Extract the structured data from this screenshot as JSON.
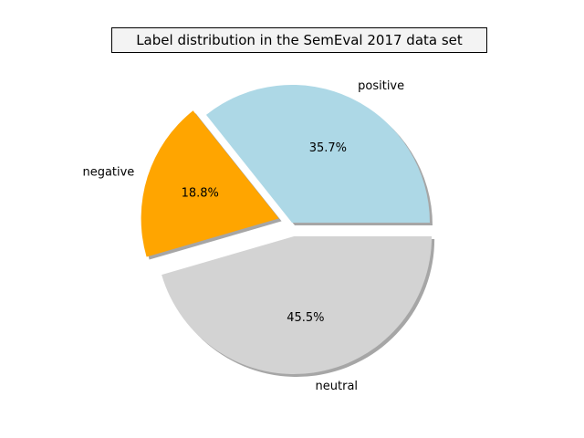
{
  "chart_data": {
    "type": "pie",
    "title": "Label distribution in the SemEval 2017 data set",
    "slices": [
      {
        "label": "positive",
        "value": 35.7,
        "pct_label": "35.7%",
        "color": "#add8e6",
        "exploded": false
      },
      {
        "label": "negative",
        "value": 18.8,
        "pct_label": "18.8%",
        "color": "#ffa500",
        "exploded": true
      },
      {
        "label": "neutral",
        "value": 45.5,
        "pct_label": "45.5%",
        "color": "#d3d3d3",
        "exploded": true
      }
    ],
    "start_angle": 0,
    "direction": "counterclockwise",
    "shadow": true
  }
}
